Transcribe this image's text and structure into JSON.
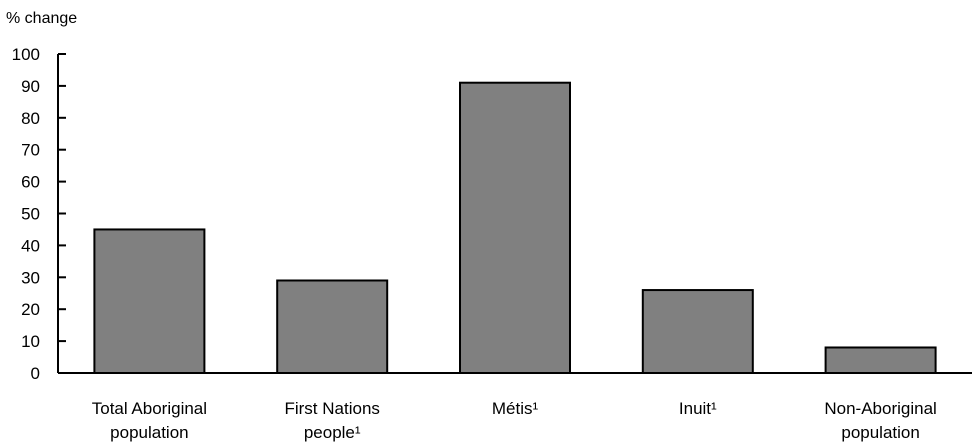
{
  "chart_data": {
    "type": "bar",
    "title": "",
    "xlabel": "",
    "ylabel": "% change",
    "ylim": [
      0,
      100
    ],
    "yticks": [
      0,
      10,
      20,
      30,
      40,
      50,
      60,
      70,
      80,
      90,
      100
    ],
    "grid": false,
    "legend": "none",
    "categories": [
      [
        "Total Aboriginal",
        "population"
      ],
      [
        "First Nations",
        "people¹"
      ],
      [
        "Métis¹"
      ],
      [
        "Inuit¹"
      ],
      [
        "Non-Aboriginal",
        "population"
      ]
    ],
    "values": [
      45,
      29,
      91,
      26,
      8
    ],
    "bar_color": "#808080"
  }
}
